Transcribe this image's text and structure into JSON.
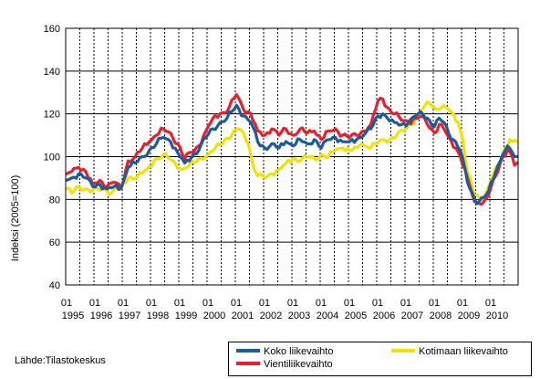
{
  "chart_data": {
    "type": "line",
    "ylabel": "Indeksi (2005=100)",
    "ylim": [
      40,
      160
    ],
    "yticks": [
      40,
      60,
      80,
      100,
      120,
      140,
      160
    ],
    "grid": true,
    "x_start": "1995-01",
    "x_end": "2010-12",
    "tick_month_label": "01",
    "year_labels": [
      "1995",
      "1996",
      "1997",
      "1998",
      "1999",
      "2000",
      "2001",
      "2002",
      "2003",
      "2004",
      "2005",
      "2006",
      "2007",
      "2008",
      "2009",
      "2010"
    ],
    "legend_position": "bottom-right",
    "series": [
      {
        "name": "Kotimaan liikevaihto",
        "color": "#f2e200",
        "keypoints": [
          [
            "1995-01",
            85
          ],
          [
            "1995-03",
            83
          ],
          [
            "1995-06",
            86
          ],
          [
            "1995-09",
            85
          ],
          [
            "1995-12",
            84
          ],
          [
            "1996-04",
            85
          ],
          [
            "1996-06",
            84
          ],
          [
            "1996-08",
            83
          ],
          [
            "1996-10",
            85
          ],
          [
            "1996-12",
            86
          ],
          [
            "1997-03",
            90
          ],
          [
            "1997-07",
            91
          ],
          [
            "1997-11",
            94
          ],
          [
            "1998-02",
            98
          ],
          [
            "1998-06",
            101
          ],
          [
            "1998-10",
            98
          ],
          [
            "1999-02",
            94
          ],
          [
            "1999-05",
            96
          ],
          [
            "1999-09",
            99
          ],
          [
            "2000-01",
            101
          ],
          [
            "2000-04",
            104
          ],
          [
            "2000-08",
            108
          ],
          [
            "2000-11",
            110
          ],
          [
            "2001-02",
            113
          ],
          [
            "2001-04",
            111
          ],
          [
            "2001-06",
            106
          ],
          [
            "2001-08",
            96
          ],
          [
            "2001-10",
            91
          ],
          [
            "2002-01",
            90
          ],
          [
            "2002-04",
            92
          ],
          [
            "2002-07",
            94
          ],
          [
            "2002-10",
            97
          ],
          [
            "2003-01",
            99
          ],
          [
            "2003-04",
            98
          ],
          [
            "2003-07",
            100
          ],
          [
            "2003-10",
            99
          ],
          [
            "2004-01",
            101
          ],
          [
            "2004-04",
            100
          ],
          [
            "2004-07",
            103
          ],
          [
            "2004-10",
            104
          ],
          [
            "2005-01",
            103
          ],
          [
            "2005-04",
            104
          ],
          [
            "2005-06",
            106
          ],
          [
            "2005-09",
            104
          ],
          [
            "2005-12",
            106
          ],
          [
            "2006-03",
            108
          ],
          [
            "2006-06",
            108
          ],
          [
            "2006-09",
            110
          ],
          [
            "2006-12",
            112
          ],
          [
            "2007-03",
            115
          ],
          [
            "2007-06",
            120
          ],
          [
            "2007-09",
            124
          ],
          [
            "2007-11",
            125
          ],
          [
            "2008-01",
            123
          ],
          [
            "2008-03",
            122
          ],
          [
            "2008-05",
            124
          ],
          [
            "2008-08",
            121
          ],
          [
            "2008-11",
            116
          ],
          [
            "2009-01",
            108
          ],
          [
            "2009-03",
            93
          ],
          [
            "2009-06",
            82
          ],
          [
            "2009-09",
            80
          ],
          [
            "2009-11",
            83
          ],
          [
            "2010-01",
            89
          ],
          [
            "2010-04",
            96
          ],
          [
            "2010-07",
            104
          ],
          [
            "2010-09",
            108
          ],
          [
            "2010-10",
            107
          ],
          [
            "2010-12",
            107
          ]
        ]
      },
      {
        "name": "Vientiliikevaihto",
        "color": "#e8202c",
        "keypoints": [
          [
            "1995-01",
            92
          ],
          [
            "1995-03",
            93
          ],
          [
            "1995-06",
            95
          ],
          [
            "1995-09",
            93
          ],
          [
            "1995-12",
            87
          ],
          [
            "1996-03",
            89
          ],
          [
            "1996-06",
            86
          ],
          [
            "1996-09",
            88
          ],
          [
            "1996-12",
            85
          ],
          [
            "1997-03",
            98
          ],
          [
            "1997-06",
            100
          ],
          [
            "1997-09",
            104
          ],
          [
            "1997-12",
            107
          ],
          [
            "1998-03",
            110
          ],
          [
            "1998-06",
            113
          ],
          [
            "1998-09",
            111
          ],
          [
            "1998-12",
            106
          ],
          [
            "1999-03",
            99
          ],
          [
            "1999-06",
            102
          ],
          [
            "1999-09",
            105
          ],
          [
            "1999-12",
            112
          ],
          [
            "2000-03",
            118
          ],
          [
            "2000-06",
            120
          ],
          [
            "2000-09",
            121
          ],
          [
            "2001-01",
            129
          ],
          [
            "2001-04",
            122
          ],
          [
            "2001-07",
            120
          ],
          [
            "2001-10",
            112
          ],
          [
            "2002-01",
            110
          ],
          [
            "2002-04",
            113
          ],
          [
            "2002-07",
            110
          ],
          [
            "2002-10",
            113
          ],
          [
            "2003-01",
            110
          ],
          [
            "2003-04",
            113
          ],
          [
            "2003-07",
            111
          ],
          [
            "2003-10",
            112
          ],
          [
            "2004-01",
            108
          ],
          [
            "2004-04",
            112
          ],
          [
            "2004-07",
            113
          ],
          [
            "2004-10",
            110
          ],
          [
            "2005-01",
            109
          ],
          [
            "2005-04",
            110
          ],
          [
            "2005-07",
            112
          ],
          [
            "2005-10",
            115
          ],
          [
            "2006-01",
            126
          ],
          [
            "2006-03",
            127
          ],
          [
            "2006-05",
            123
          ],
          [
            "2006-08",
            120
          ],
          [
            "2006-11",
            117
          ],
          [
            "2007-02",
            116
          ],
          [
            "2007-05",
            118
          ],
          [
            "2007-08",
            119
          ],
          [
            "2007-10",
            115
          ],
          [
            "2008-01",
            111
          ],
          [
            "2008-03",
            115
          ],
          [
            "2008-05",
            113
          ],
          [
            "2008-07",
            109
          ],
          [
            "2008-10",
            104
          ],
          [
            "2008-12",
            100
          ],
          [
            "2009-03",
            90
          ],
          [
            "2009-06",
            79
          ],
          [
            "2009-08",
            78
          ],
          [
            "2009-10",
            79
          ],
          [
            "2009-12",
            82
          ],
          [
            "2010-03",
            91
          ],
          [
            "2010-06",
            100
          ],
          [
            "2010-08",
            103
          ],
          [
            "2010-10",
            100
          ],
          [
            "2010-11",
            96
          ],
          [
            "2010-12",
            97
          ]
        ]
      },
      {
        "name": "Koko liikevaihto",
        "color": "#1a5c9e",
        "keypoints": [
          [
            "1995-01",
            89
          ],
          [
            "1995-03",
            90
          ],
          [
            "1995-06",
            92
          ],
          [
            "1995-09",
            90
          ],
          [
            "1995-12",
            86
          ],
          [
            "1996-03",
            87
          ],
          [
            "1996-06",
            85
          ],
          [
            "1996-09",
            86
          ],
          [
            "1996-12",
            85
          ],
          [
            "1997-03",
            95
          ],
          [
            "1997-06",
            97
          ],
          [
            "1997-09",
            100
          ],
          [
            "1997-12",
            103
          ],
          [
            "1998-03",
            106
          ],
          [
            "1998-06",
            109
          ],
          [
            "1998-09",
            107
          ],
          [
            "1998-12",
            102
          ],
          [
            "1999-03",
            97
          ],
          [
            "1999-06",
            100
          ],
          [
            "1999-09",
            103
          ],
          [
            "1999-12",
            109
          ],
          [
            "2000-03",
            113
          ],
          [
            "2000-06",
            116
          ],
          [
            "2000-09",
            118
          ],
          [
            "2001-01",
            124
          ],
          [
            "2001-04",
            119
          ],
          [
            "2001-07",
            116
          ],
          [
            "2001-10",
            107
          ],
          [
            "2002-01",
            104
          ],
          [
            "2002-04",
            106
          ],
          [
            "2002-07",
            104
          ],
          [
            "2002-10",
            107
          ],
          [
            "2003-01",
            105
          ],
          [
            "2003-04",
            108
          ],
          [
            "2003-07",
            106
          ],
          [
            "2003-10",
            108
          ],
          [
            "2004-01",
            104
          ],
          [
            "2004-04",
            108
          ],
          [
            "2004-07",
            109
          ],
          [
            "2004-10",
            107
          ],
          [
            "2005-01",
            107
          ],
          [
            "2005-04",
            108
          ],
          [
            "2005-07",
            110
          ],
          [
            "2005-10",
            113
          ],
          [
            "2006-01",
            119
          ],
          [
            "2006-03",
            120
          ],
          [
            "2006-05",
            118
          ],
          [
            "2006-08",
            116
          ],
          [
            "2006-11",
            115
          ],
          [
            "2007-02",
            116
          ],
          [
            "2007-05",
            119
          ],
          [
            "2007-08",
            120
          ],
          [
            "2007-10",
            118
          ],
          [
            "2008-01",
            114
          ],
          [
            "2008-03",
            118
          ],
          [
            "2008-05",
            116
          ],
          [
            "2008-07",
            111
          ],
          [
            "2008-10",
            107
          ],
          [
            "2008-12",
            103
          ],
          [
            "2009-03",
            88
          ],
          [
            "2009-06",
            80
          ],
          [
            "2009-08",
            79
          ],
          [
            "2009-10",
            81
          ],
          [
            "2009-12",
            84
          ],
          [
            "2010-03",
            93
          ],
          [
            "2010-06",
            101
          ],
          [
            "2010-08",
            105
          ],
          [
            "2010-10",
            102
          ],
          [
            "2010-11",
            100
          ],
          [
            "2010-12",
            100
          ]
        ]
      }
    ]
  },
  "source": "Lähde:Tilastokeskus",
  "legend": [
    {
      "label": "Koko liikevaihto",
      "color": "#1a5c9e"
    },
    {
      "label": "Kotimaan liikevaihto",
      "color": "#f2e200"
    },
    {
      "label": "Vientiliikevaihto",
      "color": "#e8202c"
    }
  ]
}
